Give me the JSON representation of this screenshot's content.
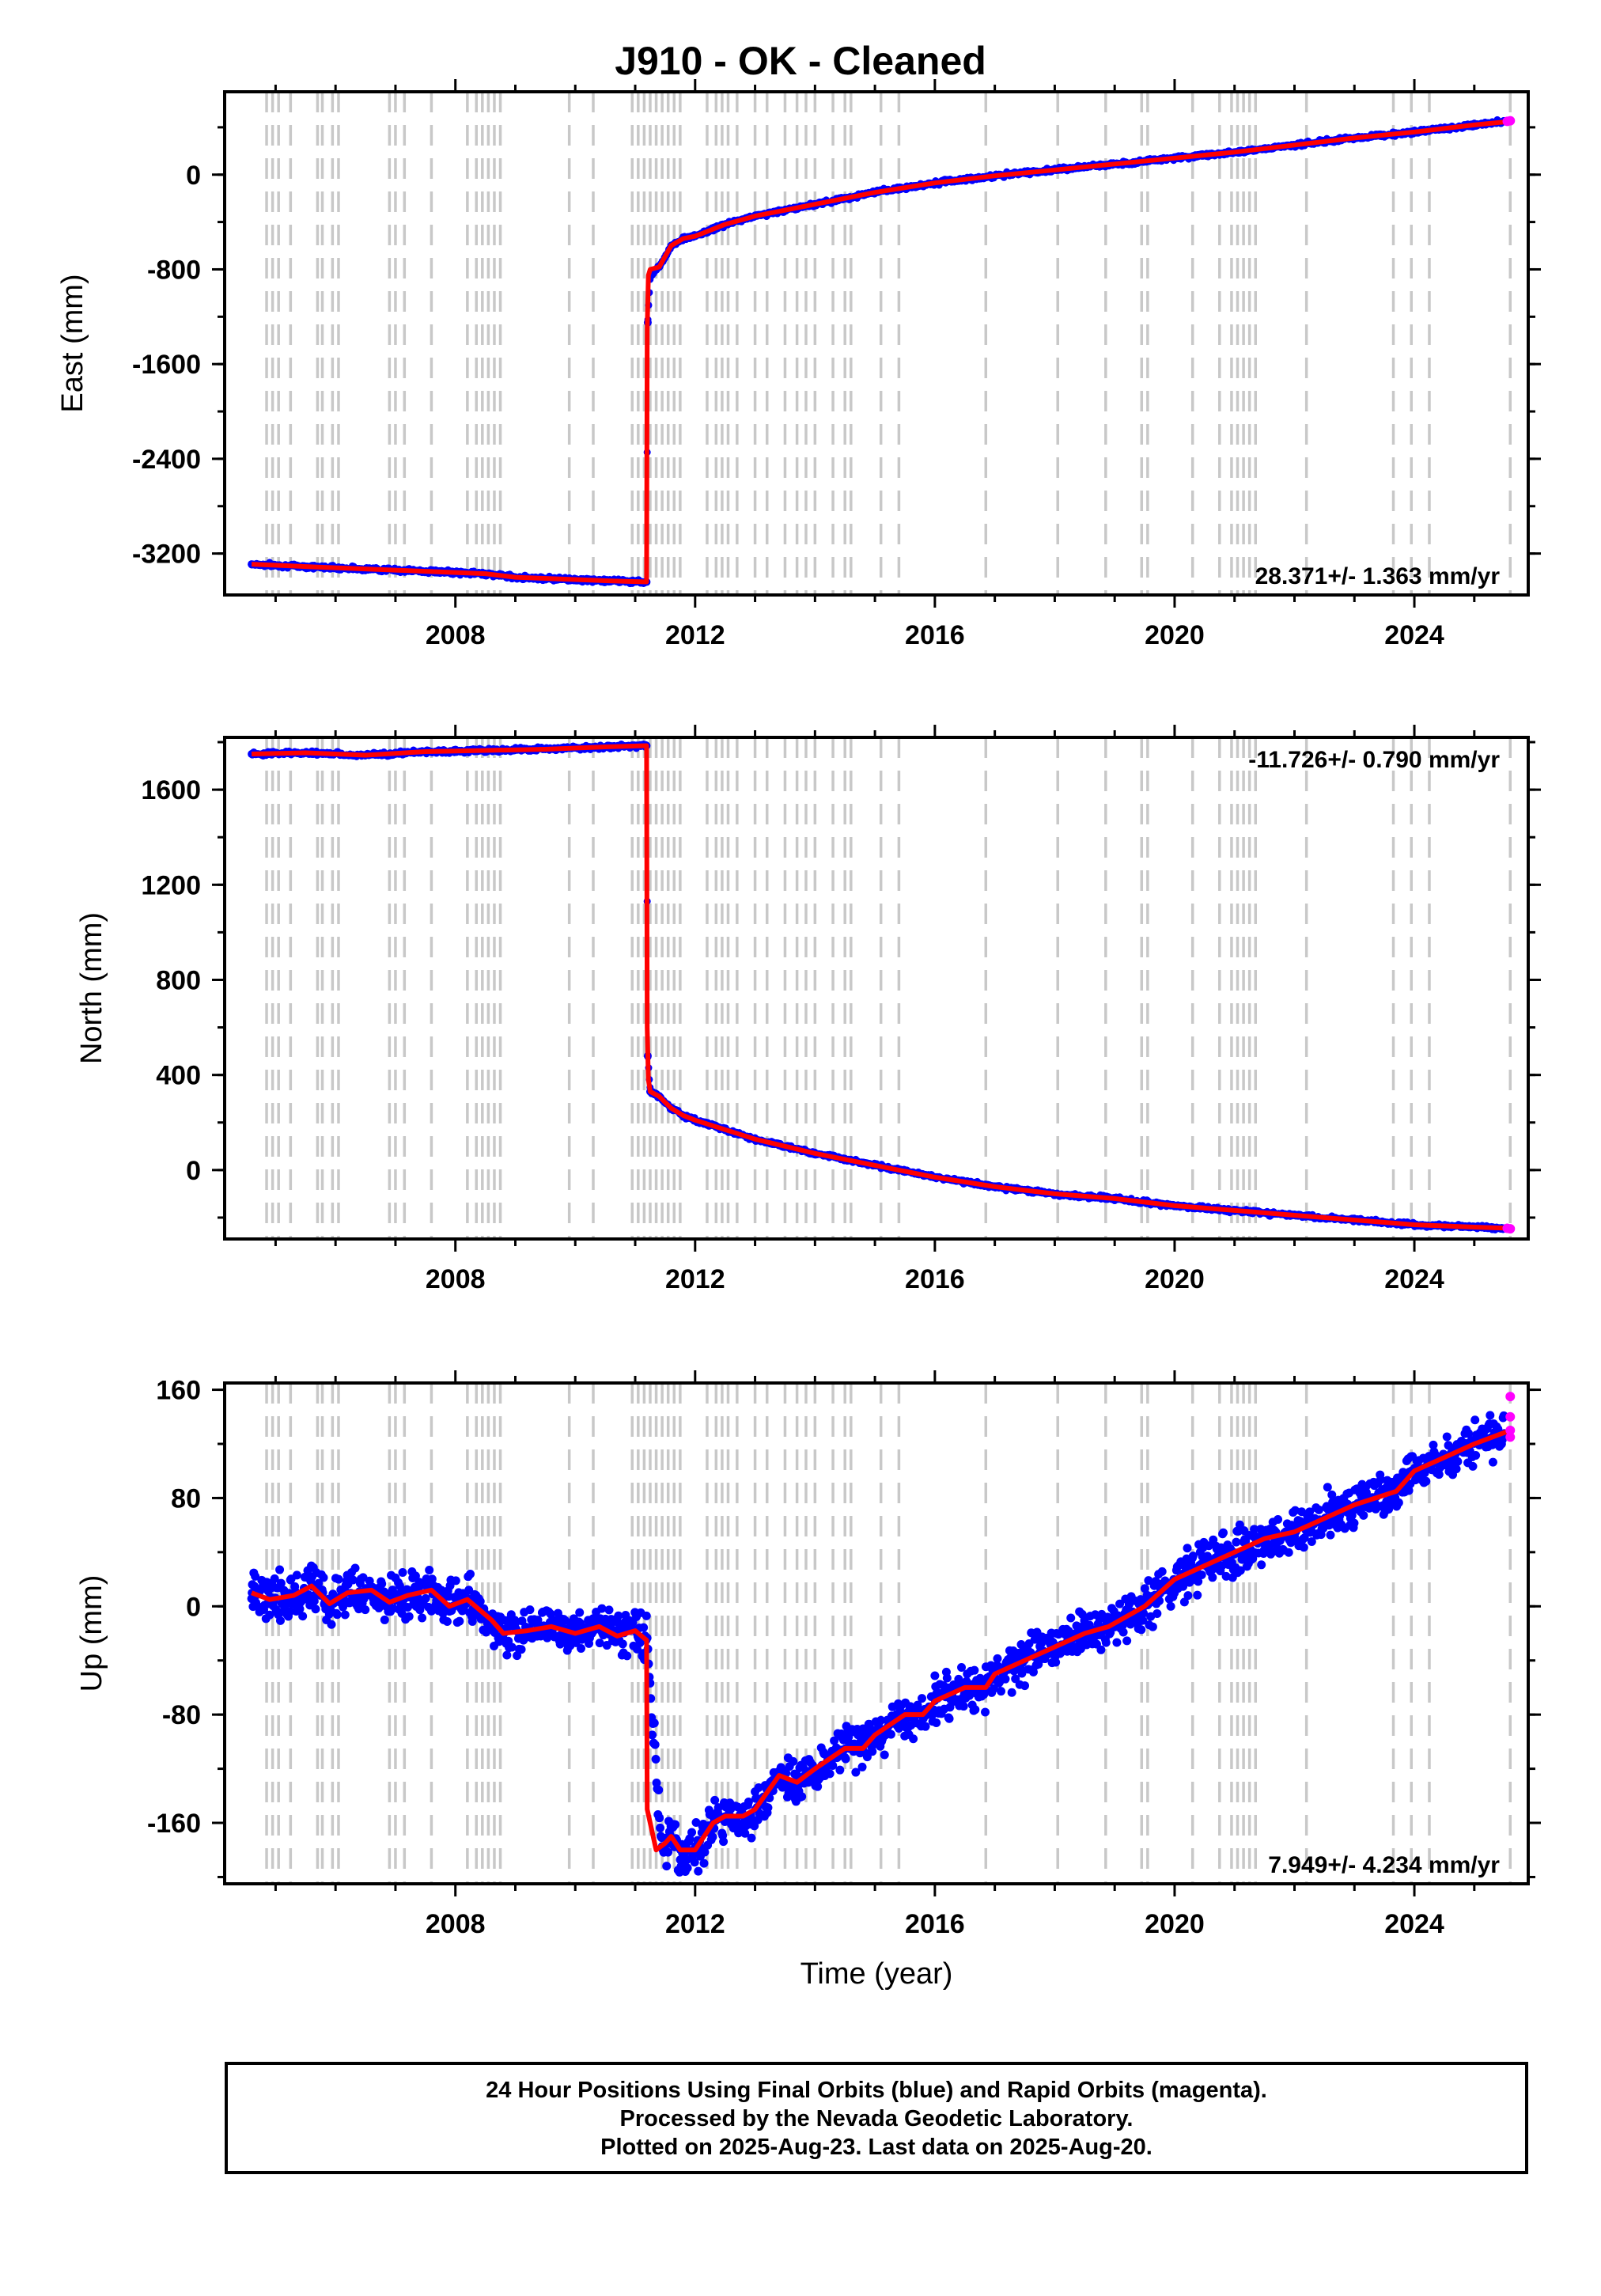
{
  "title": "J910  - OK - Cleaned",
  "footer": {
    "line1": "24 Hour Positions Using Final Orbits (blue) and Rapid Orbits (magenta).",
    "line2": "Processed by the Nevada Geodetic Laboratory.",
    "line3": "Plotted on 2025-Aug-23. Last data on 2025-Aug-20."
  },
  "colors": {
    "final": "#0000ff",
    "rapid": "#ff00ff",
    "model": "#ff0000",
    "steps": "#c8c8c8"
  },
  "step_epochs": [
    2004.85,
    2004.95,
    2005.05,
    2005.25,
    2005.7,
    2005.78,
    2005.95,
    2006.05,
    2006.9,
    2007.0,
    2007.15,
    2007.6,
    2008.2,
    2008.35,
    2008.45,
    2008.55,
    2008.65,
    2008.75,
    2009.9,
    2010.3,
    2010.95,
    2011.05,
    2011.15,
    2011.25,
    2011.35,
    2011.45,
    2011.55,
    2011.65,
    2011.75,
    2012.2,
    2012.35,
    2012.45,
    2012.55,
    2012.7,
    2013.0,
    2013.2,
    2013.5,
    2013.7,
    2013.85,
    2014.0,
    2014.3,
    2014.5,
    2014.6,
    2015.1,
    2015.4,
    2016.85,
    2018.05,
    2018.85,
    2019.45,
    2019.55,
    2020.3,
    2020.75,
    2020.95,
    2021.05,
    2021.15,
    2021.25,
    2021.35,
    2022.2,
    2023.65,
    2023.95,
    2024.25,
    2025.6
  ],
  "chart_data": [
    {
      "type": "scatter",
      "ylabel": "East (mm)",
      "xlabel": "",
      "xlim": [
        2004.15,
        2025.9
      ],
      "ylim": [
        -3550,
        700
      ],
      "xticks": [
        "2008",
        "2012",
        "2016",
        "2020",
        "2024"
      ],
      "yticks": [
        "0",
        "-800",
        "-1600",
        "-2400",
        "-3200"
      ],
      "ytick_values": [
        0,
        -800,
        -1600,
        -2400,
        -3200
      ],
      "rate": "28.371+/- 1.363 mm/yr",
      "rate_position": "bottom-right",
      "model": {
        "x": [
          2004.6,
          2005.5,
          2006.5,
          2007.5,
          2008.5,
          2009.0,
          2010.0,
          2010.5,
          2011.19,
          2011.2,
          2011.22,
          2011.25,
          2011.4,
          2011.6,
          2011.8,
          2012.0,
          2012.5,
          2013.0,
          2014.0,
          2015.0,
          2016.0,
          2017.0,
          2018.0,
          2019.0,
          2020.0,
          2021.0,
          2022.0,
          2023.0,
          2024.0,
          2025.0,
          2025.6
        ],
        "y": [
          -3290,
          -3310,
          -3330,
          -3350,
          -3370,
          -3400,
          -3420,
          -3430,
          -3440,
          -1300,
          -850,
          -800,
          -780,
          -600,
          -540,
          -520,
          -420,
          -350,
          -250,
          -150,
          -70,
          -10,
          40,
          90,
          140,
          190,
          250,
          310,
          360,
          420,
          450
        ]
      },
      "final_orbits": {
        "x": [
          2004.6,
          2005.5,
          2006.5,
          2007.5,
          2008.5,
          2009.0,
          2010.0,
          2010.5,
          2011.19,
          2011.21,
          2011.25,
          2011.4,
          2011.6,
          2011.8,
          2012.0,
          2012.5,
          2013.0,
          2014.0,
          2015.0,
          2016.0,
          2017.0,
          2018.0,
          2019.0,
          2020.0,
          2021.0,
          2022.0,
          2023.0,
          2024.0,
          2025.0,
          2025.5
        ],
        "y": [
          -3290,
          -3310,
          -3330,
          -3350,
          -3370,
          -3400,
          -3420,
          -3430,
          -3440,
          -1250,
          -850,
          -780,
          -600,
          -540,
          -520,
          -420,
          -350,
          -250,
          -150,
          -70,
          -10,
          40,
          90,
          140,
          190,
          250,
          310,
          360,
          420,
          450
        ]
      },
      "rapid_orbits": {
        "x": [
          2025.55,
          2025.6
        ],
        "y": [
          450,
          455
        ]
      }
    },
    {
      "type": "scatter",
      "ylabel": "North (mm)",
      "xlabel": "",
      "xlim": [
        2004.15,
        2025.9
      ],
      "ylim": [
        -290,
        1820
      ],
      "xticks": [
        "2008",
        "2012",
        "2016",
        "2020",
        "2024"
      ],
      "yticks": [
        "1600",
        "1200",
        "800",
        "400",
        "0"
      ],
      "ytick_values": [
        1600,
        1200,
        800,
        400,
        0
      ],
      "rate": "-11.726+/- 0.790 mm/yr",
      "rate_position": "top-right",
      "model": {
        "x": [
          2004.6,
          2005.5,
          2006.5,
          2007.5,
          2008.5,
          2009.5,
          2010.5,
          2011.19,
          2011.2,
          2011.22,
          2011.25,
          2011.4,
          2011.6,
          2011.8,
          2012.0,
          2012.5,
          2013.0,
          2014.0,
          2015.0,
          2016.0,
          2017.0,
          2018.0,
          2019.0,
          2020.0,
          2021.0,
          2022.0,
          2023.0,
          2024.0,
          2025.0,
          2025.6
        ],
        "y": [
          1750,
          1755,
          1745,
          1760,
          1765,
          1770,
          1780,
          1785,
          600,
          380,
          330,
          310,
          260,
          230,
          210,
          170,
          130,
          70,
          20,
          -30,
          -70,
          -100,
          -120,
          -150,
          -170,
          -190,
          -210,
          -230,
          -240,
          -245
        ]
      },
      "final_orbits": {
        "x": [
          2004.6,
          2005.5,
          2006.5,
          2007.5,
          2008.5,
          2009.5,
          2010.5,
          2011.19,
          2011.21,
          2011.25,
          2011.4,
          2011.6,
          2011.8,
          2012.0,
          2012.5,
          2013.0,
          2014.0,
          2015.0,
          2016.0,
          2017.0,
          2018.0,
          2019.0,
          2020.0,
          2021.0,
          2022.0,
          2023.0,
          2024.0,
          2025.0,
          2025.5
        ],
        "y": [
          1750,
          1755,
          1745,
          1760,
          1765,
          1770,
          1780,
          1785,
          480,
          330,
          310,
          260,
          230,
          210,
          170,
          130,
          70,
          20,
          -30,
          -70,
          -100,
          -120,
          -150,
          -170,
          -190,
          -210,
          -230,
          -240,
          -245
        ]
      },
      "rapid_orbits": {
        "x": [
          2025.55,
          2025.6
        ],
        "y": [
          -245,
          -247
        ]
      }
    },
    {
      "type": "scatter",
      "ylabel": "Up (mm)",
      "xlabel": "Time (year)",
      "xlim": [
        2004.15,
        2025.9
      ],
      "ylim": [
        -205,
        165
      ],
      "xticks": [
        "2008",
        "2012",
        "2016",
        "2020",
        "2024"
      ],
      "yticks": [
        "160",
        "80",
        "0",
        "-80",
        "-160"
      ],
      "ytick_values": [
        160,
        80,
        0,
        -80,
        -160
      ],
      "rate": "7.949+/- 4.234 mm/yr",
      "rate_position": "bottom-right",
      "model": {
        "x": [
          2004.6,
          2004.9,
          2005.3,
          2005.6,
          2005.9,
          2006.2,
          2006.6,
          2006.9,
          2007.2,
          2007.6,
          2007.9,
          2008.2,
          2008.6,
          2008.8,
          2009.2,
          2009.6,
          2010.0,
          2010.4,
          2010.7,
          2011.0,
          2011.19,
          2011.2,
          2011.35,
          2011.5,
          2011.6,
          2011.75,
          2012.0,
          2012.3,
          2012.5,
          2012.8,
          2013.0,
          2013.4,
          2013.7,
          2014.0,
          2014.5,
          2014.8,
          2015.0,
          2015.5,
          2015.8,
          2016.0,
          2016.5,
          2016.85,
          2017.0,
          2017.5,
          2018.0,
          2018.5,
          2018.9,
          2019.5,
          2020.0,
          2020.5,
          2021.0,
          2021.5,
          2022.0,
          2022.5,
          2023.0,
          2023.7,
          2024.0,
          2024.5,
          2025.0,
          2025.6
        ],
        "y": [
          10,
          5,
          8,
          15,
          2,
          10,
          12,
          3,
          8,
          12,
          0,
          5,
          -10,
          -20,
          -18,
          -15,
          -20,
          -15,
          -22,
          -18,
          -25,
          -150,
          -180,
          -175,
          -170,
          -180,
          -180,
          -160,
          -155,
          -155,
          -150,
          -125,
          -130,
          -120,
          -105,
          -105,
          -95,
          -80,
          -80,
          -70,
          -60,
          -60,
          -50,
          -40,
          -30,
          -20,
          -15,
          0,
          20,
          30,
          40,
          50,
          55,
          65,
          75,
          85,
          100,
          110,
          120,
          130
        ]
      },
      "final_orbits": {
        "x": [
          2004.6,
          2004.9,
          2005.3,
          2005.6,
          2005.9,
          2006.2,
          2006.6,
          2006.9,
          2007.2,
          2007.6,
          2007.9,
          2008.2,
          2008.6,
          2008.8,
          2009.2,
          2009.6,
          2010.0,
          2010.4,
          2010.7,
          2011.0,
          2011.19,
          2011.45,
          2011.6,
          2011.75,
          2012.0,
          2012.3,
          2012.5,
          2012.8,
          2013.0,
          2013.4,
          2013.7,
          2014.0,
          2014.5,
          2014.8,
          2015.0,
          2015.5,
          2015.8,
          2016.0,
          2016.5,
          2016.85,
          2017.0,
          2017.5,
          2018.0,
          2018.5,
          2018.9,
          2019.5,
          2020.0,
          2020.5,
          2021.0,
          2021.5,
          2022.0,
          2022.5,
          2023.0,
          2023.7,
          2024.0,
          2024.5,
          2025.0,
          2025.5
        ],
        "y": [
          10,
          5,
          8,
          15,
          2,
          10,
          12,
          3,
          8,
          12,
          0,
          5,
          -10,
          -20,
          -18,
          -15,
          -20,
          -15,
          -22,
          -18,
          -25,
          -178,
          -170,
          -180,
          -180,
          -160,
          -155,
          -155,
          -150,
          -125,
          -130,
          -120,
          -105,
          -105,
          -95,
          -80,
          -80,
          -70,
          -60,
          -60,
          -50,
          -40,
          -30,
          -20,
          -15,
          0,
          20,
          30,
          40,
          50,
          55,
          65,
          75,
          85,
          100,
          110,
          120,
          128
        ]
      },
      "rapid_orbits": {
        "x": [
          2025.6,
          2025.6,
          2025.6,
          2025.6
        ],
        "y": [
          155,
          140,
          130,
          125
        ]
      }
    }
  ]
}
